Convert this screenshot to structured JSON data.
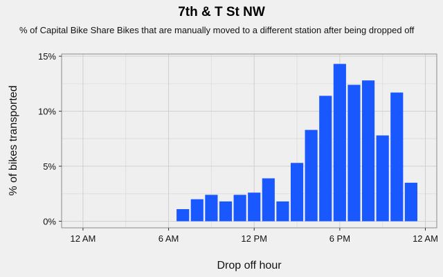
{
  "chart_data": {
    "type": "bar",
    "title": "7th & T St NW",
    "subtitle": "% of Capital Bike Share Bikes that are manually moved to a different station after being dropped off",
    "xlabel": "Drop off hour",
    "ylabel": "% of bikes transported",
    "x_tick_labels": [
      "12 AM",
      "6 AM",
      "12 PM",
      "6 PM",
      "12 AM"
    ],
    "x_tick_hours": [
      0,
      6,
      12,
      18,
      24
    ],
    "y_tick_labels": [
      "0%",
      "5%",
      "10%",
      "15%"
    ],
    "y_tick_values": [
      0,
      5,
      10,
      15
    ],
    "xlim": [
      -1.5,
      24.8
    ],
    "ylim": [
      -0.6,
      15.2
    ],
    "grid": true,
    "bar_color": "#1957ff",
    "hours": [
      7,
      8,
      9,
      10,
      11,
      12,
      13,
      14,
      15,
      16,
      17,
      18,
      19,
      20,
      21,
      22,
      23
    ],
    "values": [
      1.1,
      2.0,
      2.4,
      1.8,
      2.4,
      2.6,
      3.9,
      1.8,
      5.3,
      8.3,
      11.4,
      14.3,
      12.4,
      12.8,
      7.8,
      11.7,
      3.5
    ]
  }
}
